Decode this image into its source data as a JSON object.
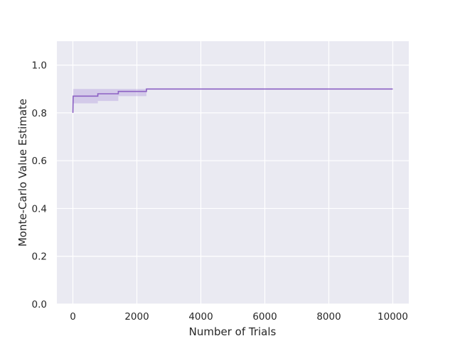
{
  "chart_data": {
    "type": "line",
    "title": "",
    "xlabel": "Number of Trials",
    "ylabel": "Monte-Carlo Value Estimate",
    "xlim": [
      -500,
      10500
    ],
    "ylim": [
      0.0,
      1.1
    ],
    "xticks": [
      0,
      2000,
      4000,
      6000,
      8000,
      10000
    ],
    "xtick_labels": [
      "0",
      "2000",
      "4000",
      "6000",
      "8000",
      "10000"
    ],
    "yticks": [
      0.0,
      0.2,
      0.4,
      0.6,
      0.8,
      1.0
    ],
    "ytick_labels": [
      "0.0",
      "0.2",
      "0.4",
      "0.6",
      "0.8",
      "1.0"
    ],
    "grid": true,
    "background": "#eaeaf2",
    "series": [
      {
        "color": "#8c61c4",
        "band_color": "#b9a3dd",
        "style": "step",
        "points": [
          {
            "x": 1,
            "y": 0.8
          },
          {
            "x": 10,
            "y": 0.87
          },
          {
            "x": 780,
            "y": 0.87
          },
          {
            "x": 780,
            "y": 0.88
          },
          {
            "x": 1420,
            "y": 0.88
          },
          {
            "x": 1420,
            "y": 0.89
          },
          {
            "x": 2300,
            "y": 0.89
          },
          {
            "x": 2300,
            "y": 0.9
          },
          {
            "x": 10000,
            "y": 0.9
          }
        ],
        "band": [
          {
            "x": 10,
            "lo": 0.84,
            "hi": 0.9
          },
          {
            "x": 780,
            "lo": 0.84,
            "hi": 0.9
          },
          {
            "x": 780,
            "lo": 0.85,
            "hi": 0.9
          },
          {
            "x": 1420,
            "lo": 0.85,
            "hi": 0.9
          },
          {
            "x": 1420,
            "lo": 0.87,
            "hi": 0.9
          },
          {
            "x": 2300,
            "lo": 0.87,
            "hi": 0.9
          }
        ]
      }
    ]
  }
}
